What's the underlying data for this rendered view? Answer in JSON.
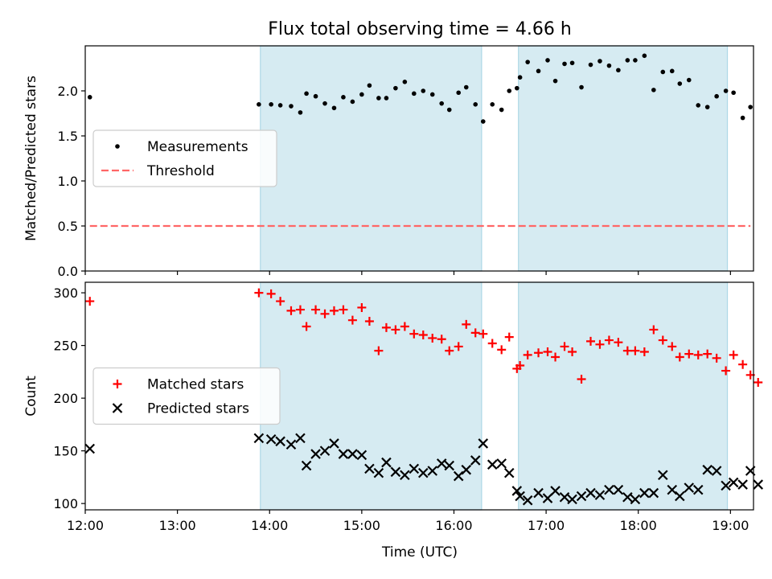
{
  "title": "Flux total observing time = 4.66 h",
  "xlabel": "Time (UTC)",
  "x_ticks": [
    "12:00",
    "13:00",
    "14:00",
    "15:00",
    "16:00",
    "17:00",
    "18:00",
    "19:00"
  ],
  "colors": {
    "shade": "#add8e6",
    "threshold": "#ff6666",
    "matched": "#ff0000",
    "predicted": "#000000",
    "measurements": "#000000"
  },
  "shaded_intervals": [
    [
      "13:54",
      "16:18"
    ],
    [
      "16:42",
      "18:58"
    ]
  ],
  "chart_data": [
    {
      "type": "scatter",
      "ylabel": "Matched/Predicted stars",
      "ylim": [
        0,
        2.5
      ],
      "y_ticks": [
        0.0,
        0.5,
        1.0,
        1.5,
        2.0
      ],
      "y_tick_labels": [
        "0.0",
        "0.5",
        "1.0",
        "1.5",
        "2.0"
      ],
      "legend_placement": "center-left",
      "grid": false,
      "series": [
        {
          "name": "Measurements",
          "marker": "dot",
          "points": [
            [
              "12:03",
              1.93
            ],
            [
              "13:53",
              1.85
            ],
            [
              "14:01",
              1.85
            ],
            [
              "14:07",
              1.84
            ],
            [
              "14:14",
              1.83
            ],
            [
              "14:20",
              1.76
            ],
            [
              "14:24",
              1.97
            ],
            [
              "14:30",
              1.94
            ],
            [
              "14:36",
              1.86
            ],
            [
              "14:42",
              1.81
            ],
            [
              "14:48",
              1.93
            ],
            [
              "14:54",
              1.88
            ],
            [
              "15:00",
              1.96
            ],
            [
              "15:05",
              2.06
            ],
            [
              "15:11",
              1.92
            ],
            [
              "15:16",
              1.92
            ],
            [
              "15:22",
              2.03
            ],
            [
              "15:28",
              2.1
            ],
            [
              "15:34",
              1.97
            ],
            [
              "15:40",
              2.0
            ],
            [
              "15:46",
              1.96
            ],
            [
              "15:52",
              1.86
            ],
            [
              "15:57",
              1.79
            ],
            [
              "16:03",
              1.98
            ],
            [
              "16:08",
              2.04
            ],
            [
              "16:14",
              1.85
            ],
            [
              "16:19",
              1.66
            ],
            [
              "16:25",
              1.85
            ],
            [
              "16:31",
              1.79
            ],
            [
              "16:36",
              2.0
            ],
            [
              "16:41",
              2.03
            ],
            [
              "16:43",
              2.15
            ],
            [
              "16:48",
              2.32
            ],
            [
              "16:55",
              2.22
            ],
            [
              "17:01",
              2.34
            ],
            [
              "17:06",
              2.11
            ],
            [
              "17:12",
              2.3
            ],
            [
              "17:17",
              2.31
            ],
            [
              "17:23",
              2.04
            ],
            [
              "17:29",
              2.29
            ],
            [
              "17:35",
              2.33
            ],
            [
              "17:41",
              2.28
            ],
            [
              "17:47",
              2.23
            ],
            [
              "17:53",
              2.34
            ],
            [
              "17:58",
              2.34
            ],
            [
              "18:04",
              2.39
            ],
            [
              "18:10",
              2.01
            ],
            [
              "18:16",
              2.21
            ],
            [
              "18:22",
              2.22
            ],
            [
              "18:27",
              2.08
            ],
            [
              "18:33",
              2.12
            ],
            [
              "18:39",
              1.84
            ],
            [
              "18:45",
              1.82
            ],
            [
              "18:51",
              1.94
            ],
            [
              "18:57",
              2.0
            ],
            [
              "19:02",
              1.98
            ],
            [
              "19:08",
              1.7
            ],
            [
              "19:13",
              1.82
            ]
          ]
        },
        {
          "name": "Threshold",
          "marker": "dashed-line",
          "points": [
            [
              "12:03",
              0.5
            ],
            [
              "19:13",
              0.5
            ]
          ]
        }
      ]
    },
    {
      "type": "scatter",
      "ylabel": "Count",
      "ylim": [
        94,
        310
      ],
      "y_ticks": [
        100,
        150,
        200,
        250,
        300
      ],
      "y_tick_labels": [
        "100",
        "150",
        "200",
        "250",
        "300"
      ],
      "legend_placement": "center-left",
      "grid": false,
      "series": [
        {
          "name": "Matched stars",
          "marker": "plus",
          "points": [
            [
              "12:03",
              292
            ],
            [
              "13:53",
              300
            ],
            [
              "14:01",
              299
            ],
            [
              "14:07",
              292
            ],
            [
              "14:14",
              283
            ],
            [
              "14:20",
              284
            ],
            [
              "14:24",
              268
            ],
            [
              "14:30",
              284
            ],
            [
              "14:36",
              280
            ],
            [
              "14:42",
              283
            ],
            [
              "14:48",
              284
            ],
            [
              "14:54",
              274
            ],
            [
              "15:00",
              286
            ],
            [
              "15:05",
              273
            ],
            [
              "15:11",
              245
            ],
            [
              "15:16",
              267
            ],
            [
              "15:22",
              265
            ],
            [
              "15:28",
              268
            ],
            [
              "15:34",
              261
            ],
            [
              "15:40",
              260
            ],
            [
              "15:46",
              257
            ],
            [
              "15:52",
              256
            ],
            [
              "15:57",
              245
            ],
            [
              "16:03",
              249
            ],
            [
              "16:08",
              270
            ],
            [
              "16:14",
              262
            ],
            [
              "16:19",
              261
            ],
            [
              "16:25",
              252
            ],
            [
              "16:31",
              246
            ],
            [
              "16:36",
              258
            ],
            [
              "16:41",
              228
            ],
            [
              "16:43",
              231
            ],
            [
              "16:48",
              241
            ],
            [
              "16:55",
              243
            ],
            [
              "17:01",
              244
            ],
            [
              "17:06",
              239
            ],
            [
              "17:12",
              249
            ],
            [
              "17:17",
              244
            ],
            [
              "17:23",
              218
            ],
            [
              "17:29",
              254
            ],
            [
              "17:35",
              251
            ],
            [
              "17:41",
              255
            ],
            [
              "17:47",
              253
            ],
            [
              "17:53",
              245
            ],
            [
              "17:58",
              245
            ],
            [
              "18:04",
              244
            ],
            [
              "18:10",
              265
            ],
            [
              "18:16",
              255
            ],
            [
              "18:22",
              249
            ],
            [
              "18:27",
              239
            ],
            [
              "18:33",
              242
            ],
            [
              "18:39",
              241
            ],
            [
              "18:45",
              242
            ],
            [
              "18:51",
              238
            ],
            [
              "18:57",
              226
            ],
            [
              "19:02",
              241
            ],
            [
              "19:08",
              232
            ],
            [
              "19:13",
              222
            ],
            [
              "19:18",
              215
            ]
          ]
        },
        {
          "name": "Predicted stars",
          "marker": "x",
          "points": [
            [
              "12:03",
              152
            ],
            [
              "13:53",
              162
            ],
            [
              "14:01",
              161
            ],
            [
              "14:07",
              159
            ],
            [
              "14:14",
              156
            ],
            [
              "14:20",
              162
            ],
            [
              "14:24",
              136
            ],
            [
              "14:30",
              147
            ],
            [
              "14:36",
              150
            ],
            [
              "14:42",
              157
            ],
            [
              "14:48",
              147
            ],
            [
              "14:54",
              147
            ],
            [
              "15:00",
              146
            ],
            [
              "15:05",
              133
            ],
            [
              "15:11",
              129
            ],
            [
              "15:16",
              139
            ],
            [
              "15:22",
              130
            ],
            [
              "15:28",
              127
            ],
            [
              "15:34",
              133
            ],
            [
              "15:40",
              129
            ],
            [
              "15:46",
              131
            ],
            [
              "15:52",
              138
            ],
            [
              "15:57",
              136
            ],
            [
              "16:03",
              126
            ],
            [
              "16:08",
              132
            ],
            [
              "16:14",
              141
            ],
            [
              "16:19",
              157
            ],
            [
              "16:25",
              137
            ],
            [
              "16:31",
              138
            ],
            [
              "16:36",
              129
            ],
            [
              "16:41",
              112
            ],
            [
              "16:43",
              107
            ],
            [
              "16:48",
              103
            ],
            [
              "16:55",
              110
            ],
            [
              "17:01",
              105
            ],
            [
              "17:06",
              112
            ],
            [
              "17:12",
              106
            ],
            [
              "17:17",
              104
            ],
            [
              "17:23",
              107
            ],
            [
              "17:29",
              110
            ],
            [
              "17:35",
              108
            ],
            [
              "17:41",
              113
            ],
            [
              "17:47",
              113
            ],
            [
              "17:53",
              106
            ],
            [
              "17:58",
              104
            ],
            [
              "18:04",
              110
            ],
            [
              "18:10",
              110
            ],
            [
              "18:16",
              127
            ],
            [
              "18:22",
              113
            ],
            [
              "18:27",
              107
            ],
            [
              "18:33",
              115
            ],
            [
              "18:39",
              113
            ],
            [
              "18:45",
              132
            ],
            [
              "18:51",
              131
            ],
            [
              "18:57",
              117
            ],
            [
              "19:02",
              120
            ],
            [
              "19:08",
              118
            ],
            [
              "19:13",
              131
            ],
            [
              "19:18",
              118
            ]
          ]
        }
      ]
    }
  ]
}
